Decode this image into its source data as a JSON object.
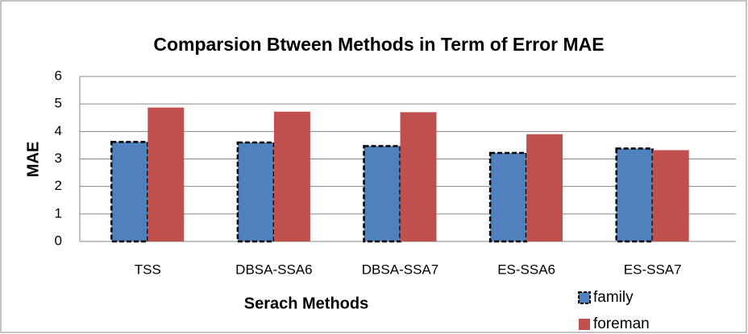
{
  "chart_data": {
    "type": "bar",
    "title": "Comparsion Btween Methods in Term of Error MAE",
    "x_label": "Serach Methods",
    "y_label": "MAE",
    "categories": [
      "TSS",
      "DBSA-SSA6",
      "DBSA-SSA7",
      "ES-SSA6",
      "ES-SSA7"
    ],
    "series": [
      {
        "name": "family",
        "color": "#4f81bd",
        "values": [
          3.62,
          3.6,
          3.47,
          3.22,
          3.38
        ]
      },
      {
        "name": "foreman",
        "color": "#c0504d",
        "values": [
          4.87,
          4.72,
          4.7,
          3.9,
          3.32
        ]
      }
    ],
    "ylim": [
      0,
      6
    ],
    "yticks": [
      0,
      1,
      2,
      3,
      4,
      5,
      6
    ],
    "grid": true,
    "legend": "bottom-right"
  }
}
